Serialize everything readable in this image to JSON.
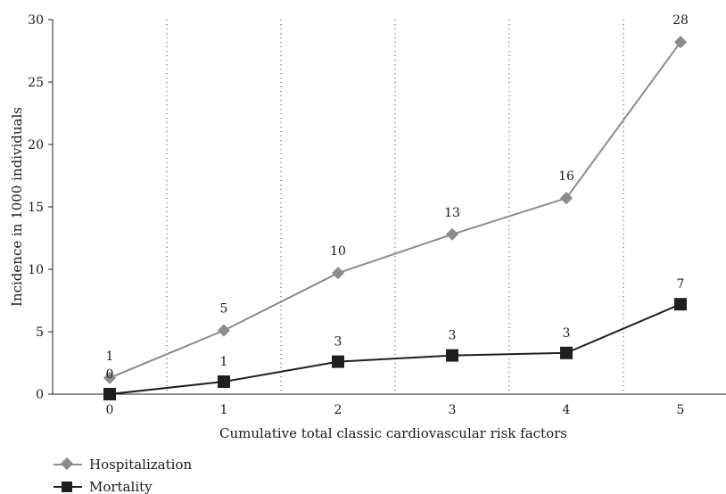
{
  "chart_data": {
    "type": "line",
    "xlabel": "Cumulative total classic cardiovascular risk factors",
    "ylabel": "Incidence in 1000 individuals",
    "x": [
      0,
      1,
      2,
      3,
      4,
      5
    ],
    "categories": [
      "0",
      "1",
      "2",
      "3",
      "4",
      "5"
    ],
    "ylim": [
      0,
      30
    ],
    "yticks": [
      "0",
      "5",
      "10",
      "15",
      "20",
      "25",
      "30"
    ],
    "grid": "vertical dotted separators between categories",
    "legend_position": "bottom-left",
    "series": [
      {
        "name": "Hospitalization",
        "marker": "diamond",
        "color": "#8c8c8c",
        "values": [
          1.3,
          5.1,
          9.7,
          12.8,
          15.7,
          28.2
        ],
        "labels": [
          "1",
          "5",
          "10",
          "13",
          "16",
          "28"
        ]
      },
      {
        "name": "Mortality",
        "marker": "square",
        "color": "#1f1f1f",
        "values": [
          0,
          1.0,
          2.6,
          3.1,
          3.3,
          7.2
        ],
        "labels": [
          "0",
          "1",
          "3",
          "3",
          "3",
          "7"
        ]
      }
    ]
  }
}
